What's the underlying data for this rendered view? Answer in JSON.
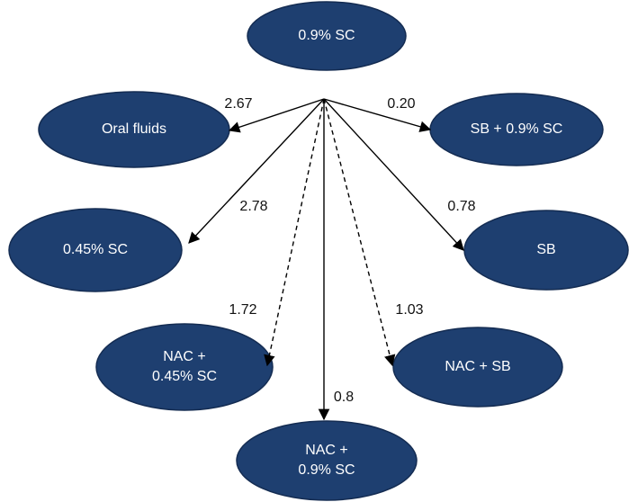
{
  "nodes": [
    {
      "lines": [
        "0.9% SC"
      ]
    },
    {
      "lines": [
        "Oral fluids"
      ]
    },
    {
      "lines": [
        "SB + 0.9% SC"
      ]
    },
    {
      "lines": [
        "0.45% SC"
      ]
    },
    {
      "lines": [
        "SB"
      ]
    },
    {
      "lines": [
        "NAC +",
        "0.45% SC"
      ]
    },
    {
      "lines": [
        "NAC + SB"
      ]
    },
    {
      "lines": [
        "NAC +",
        "0.9% SC"
      ]
    }
  ],
  "edges": [
    {
      "from": 0,
      "to": 1,
      "label": "2.67",
      "dashed": false
    },
    {
      "from": 0,
      "to": 2,
      "label": "0.20",
      "dashed": false
    },
    {
      "from": 0,
      "to": 3,
      "label": "2.78",
      "dashed": false
    },
    {
      "from": 0,
      "to": 4,
      "label": "0.78",
      "dashed": false
    },
    {
      "from": 0,
      "to": 5,
      "label": "1.72",
      "dashed": true
    },
    {
      "from": 0,
      "to": 6,
      "label": "1.03",
      "dashed": true
    },
    {
      "from": 0,
      "to": 7,
      "label": "0.8",
      "dashed": false
    }
  ]
}
